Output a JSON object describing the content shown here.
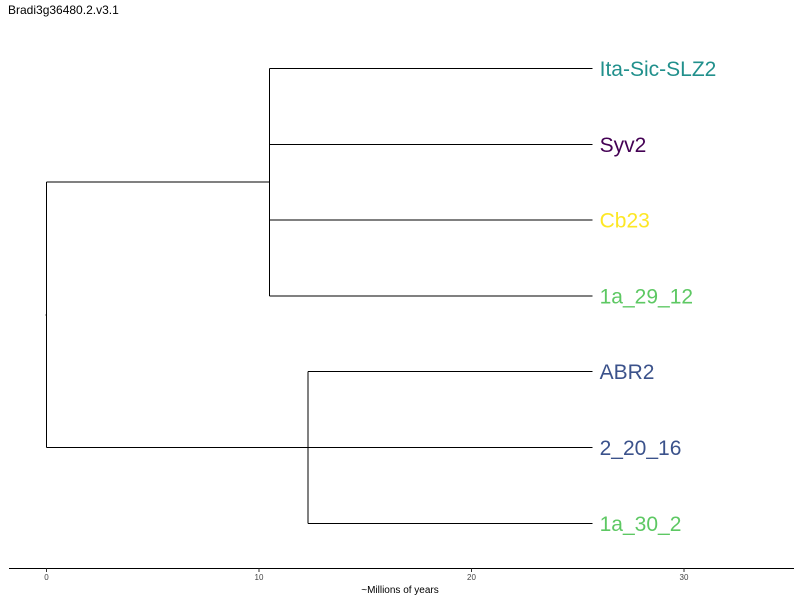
{
  "title": "Bradi3g36480.2.v3.1",
  "chart_data": {
    "type": "dendrogram",
    "xlabel": "~Millions of years",
    "xlim": [
      0,
      35
    ],
    "xticks": [
      0,
      10,
      20,
      30
    ],
    "grid": false,
    "tips": [
      {
        "label": "Ita-Sic-SLZ2",
        "color": "#21908C"
      },
      {
        "label": "Syv2",
        "color": "#440154"
      },
      {
        "label": "Cb23",
        "color": "#FDE725"
      },
      {
        "label": "1a_29_12",
        "color": "#5DC863"
      },
      {
        "label": "ABR2",
        "color": "#3B528B"
      },
      {
        "label": "2_20_16",
        "color": "#3B528B"
      },
      {
        "label": "1a_30_2",
        "color": "#5DC863"
      }
    ],
    "tree": {
      "age": 0,
      "children": [
        {
          "age": 10.5,
          "children": [
            {
              "tip": 0,
              "age": 25.7
            },
            {
              "tip": 1,
              "age": 25.7
            },
            {
              "tip": 2,
              "age": 25.7
            },
            {
              "tip": 3,
              "age": 25.7
            }
          ]
        },
        {
          "age": 12.3,
          "children": [
            {
              "tip": 4,
              "age": 25.7
            },
            {
              "tip": 5,
              "age": 25.7
            },
            {
              "tip": 6,
              "age": 25.7
            }
          ]
        }
      ]
    }
  }
}
